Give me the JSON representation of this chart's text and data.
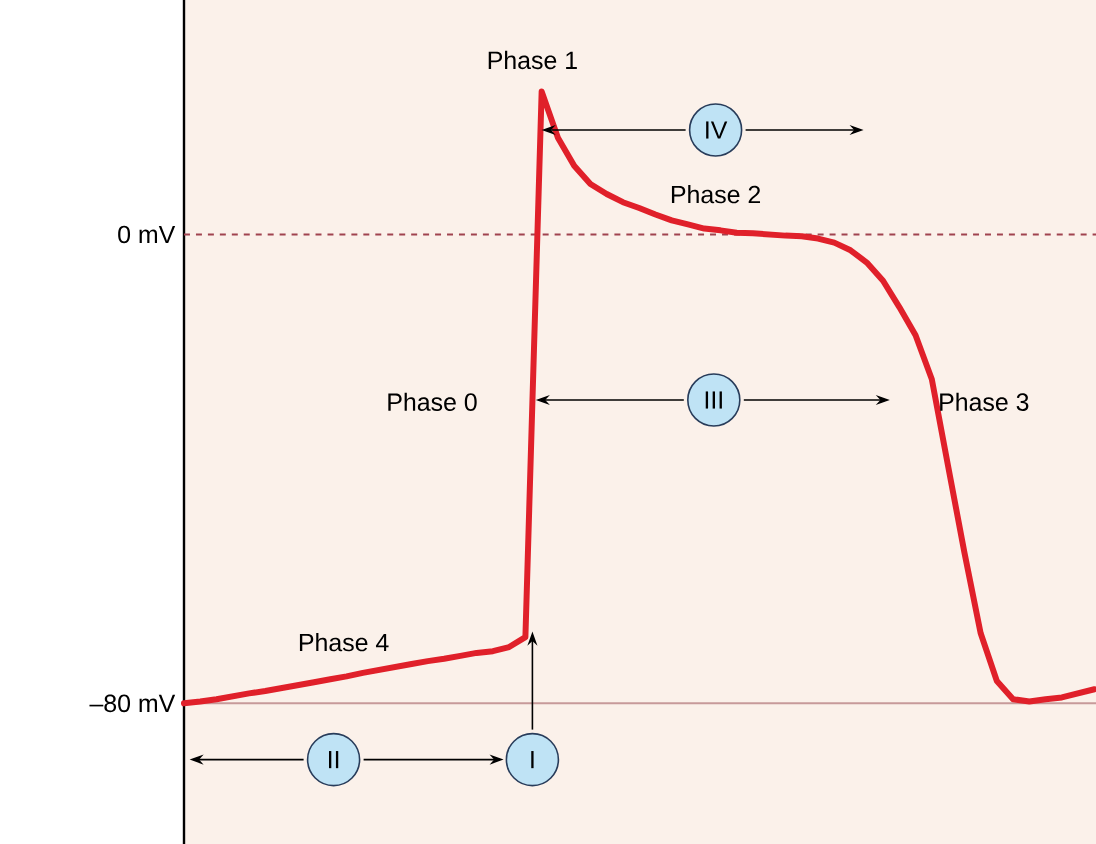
{
  "chart_data": {
    "type": "line",
    "categories": [
      null,
      null,
      null,
      null,
      null,
      null,
      null,
      null,
      null,
      null,
      null,
      null,
      null,
      null,
      null,
      null,
      null,
      null,
      null,
      null,
      null,
      null,
      null,
      null,
      null,
      null,
      null,
      null,
      null,
      null,
      null,
      null,
      null,
      null,
      null,
      null,
      null,
      null,
      null,
      null,
      null,
      null,
      null,
      null,
      null,
      null,
      null,
      null,
      null,
      null,
      null,
      null,
      null,
      null,
      null,
      null,
      null
    ],
    "series": [
      {
        "color": "#e0202a",
        "values": [
          -80,
          -79.7,
          -79.3,
          -78.8,
          -78.3,
          -77.9,
          -77.4,
          -76.9,
          -76.4,
          -75.9,
          -75.4,
          -74.8,
          -74.3,
          -73.8,
          -73.3,
          -72.8,
          -72.4,
          -71.9,
          -71.4,
          -71.1,
          -70.4,
          -68.7,
          24.4,
          16.5,
          11.7,
          8.6,
          6.9,
          5.5,
          4.5,
          3.4,
          2.4,
          1.7,
          1,
          0.7,
          0.3,
          0.2,
          0,
          -0.2,
          -0.3,
          -0.7,
          -1.4,
          -2.7,
          -4.8,
          -7.9,
          -12.4,
          -17.2,
          -24.7,
          -39.5,
          -54.2,
          -68,
          -76.2,
          -79.3,
          -79.7,
          -79.3,
          -79,
          -78.3,
          -77.6
        ]
      }
    ],
    "ylim": [
      -104,
      40
    ],
    "yticks": [
      {
        "value": 0,
        "label": "0 mV"
      },
      {
        "value": -80,
        "label": "–80 mV"
      }
    ],
    "tick_labels": "y",
    "ref_lines": [
      {
        "axis": "y",
        "value": 0,
        "color": "#a0434f",
        "line_style": "dashed"
      },
      {
        "axis": "y",
        "value": -80,
        "color": "#c79a9a",
        "line_style": "solid"
      }
    ],
    "annotations": [
      "Phase 1",
      "Phase 2",
      "Phase 0",
      "Phase 3",
      "Phase 4",
      "IV",
      "III",
      "II",
      "I"
    ]
  }
}
